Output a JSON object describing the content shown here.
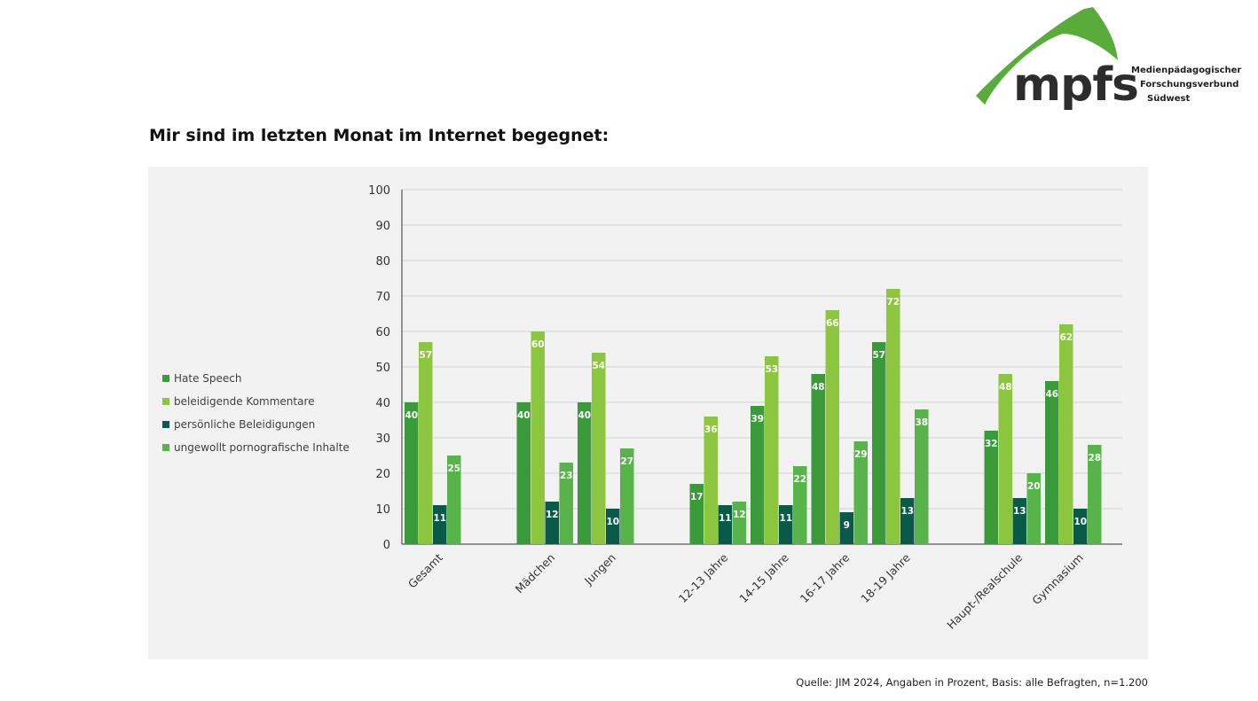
{
  "logo": {
    "word": "mpfs",
    "lines": [
      "Medienpädagogischer",
      "Forschungsverbund",
      "Südwest"
    ]
  },
  "title": "Mir sind im letzten Monat im Internet begegnet:",
  "source": "Quelle: JIM 2024, Angaben in Prozent, Basis: alle Befragten, n=1.200",
  "colors": {
    "hate_speech": "#3a9a3a",
    "beleidigende": "#8cc63f",
    "persoenliche": "#0a5a4a",
    "porno": "#58b44a",
    "panel": "#f2f2f2",
    "logo_green": "#5aac3a"
  },
  "chart_data": {
    "type": "bar",
    "categories": [
      "Gesamt",
      "Mädchen",
      "Jungen",
      "12-13 Jahre",
      "14-15 Jahre",
      "16-17 Jahre",
      "18-19 Jahre",
      "Haupt-/Realschule",
      "Gymnasium"
    ],
    "groups": [
      [
        0
      ],
      [
        1,
        2
      ],
      [
        3,
        4,
        5,
        6
      ],
      [
        7,
        8
      ]
    ],
    "ylim": [
      0,
      100
    ],
    "yticks": [
      0,
      10,
      20,
      30,
      40,
      50,
      60,
      70,
      80,
      90,
      100
    ],
    "grid": true,
    "legend_position": "left",
    "series": [
      {
        "name": "Hate Speech",
        "values": [
          40,
          40,
          40,
          17,
          39,
          48,
          57,
          32,
          46
        ]
      },
      {
        "name": "beleidigende Kommentare",
        "values": [
          57,
          60,
          54,
          36,
          53,
          66,
          72,
          48,
          62
        ]
      },
      {
        "name": "persönliche Beleidigungen",
        "values": [
          11,
          12,
          10,
          11,
          11,
          9,
          13,
          13,
          10
        ]
      },
      {
        "name": "ungewollt pornografische Inhalte",
        "values": [
          25,
          23,
          27,
          12,
          22,
          29,
          38,
          20,
          28
        ]
      }
    ]
  }
}
